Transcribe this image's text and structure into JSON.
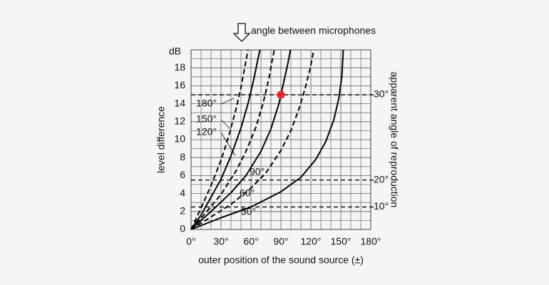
{
  "chart_data": {
    "type": "line",
    "title": "angle between microphones",
    "x_label": "outer position of the sound source (±)",
    "y_label": "level difference",
    "y_unit": "dB",
    "y2_label": "apparent angle of reproduction",
    "xlim": [
      0,
      180
    ],
    "ylim": [
      0,
      20
    ],
    "xticks": [
      {
        "value": 0,
        "label": "0°"
      },
      {
        "value": 30,
        "label": "30°"
      },
      {
        "value": 60,
        "label": "60°"
      },
      {
        "value": 90,
        "label": "90°"
      },
      {
        "value": 120,
        "label": "120°"
      },
      {
        "value": 150,
        "label": "150°"
      },
      {
        "value": 180,
        "label": "180°"
      }
    ],
    "yticks": [
      0,
      2,
      4,
      6,
      8,
      10,
      12,
      14,
      16,
      18
    ],
    "grid": true,
    "grid_step_x": 10,
    "grid_step_y": 1,
    "series": [
      {
        "name": "30°",
        "color": "#000000",
        "dashed": false,
        "x": [
          0,
          30,
          60,
          90,
          110,
          125,
          135,
          143,
          148,
          151,
          152.5
        ],
        "values": [
          0,
          1.3,
          2.5,
          4.2,
          5.8,
          7.8,
          9.8,
          12.2,
          14.6,
          17,
          20
        ]
      },
      {
        "name": "60°",
        "color": "#000000",
        "dashed": true,
        "x": [
          0,
          20,
          40,
          60,
          75,
          90,
          100,
          108,
          114,
          119,
          123
        ],
        "values": [
          0,
          1.4,
          2.8,
          4.6,
          6.3,
          8.8,
          11,
          13.4,
          15.6,
          17.8,
          20
        ]
      },
      {
        "name": "90°",
        "color": "#000000",
        "dashed": false,
        "x": [
          0,
          20,
          40,
          55,
          70,
          80,
          88,
          93,
          97,
          99.5
        ],
        "values": [
          0,
          2,
          4.1,
          6,
          8.7,
          11.2,
          14,
          16.5,
          18.5,
          20
        ]
      },
      {
        "name": "120°",
        "color": "#000000",
        "dashed": true,
        "x": [
          0,
          15,
          30,
          45,
          55,
          65,
          72,
          78,
          82,
          83.5
        ],
        "values": [
          0,
          1.9,
          3.9,
          6.5,
          8.7,
          11.4,
          14,
          16.8,
          19.3,
          20
        ]
      },
      {
        "name": "150°",
        "color": "#000000",
        "dashed": false,
        "x": [
          0,
          10,
          20,
          30,
          40,
          50,
          57,
          63,
          67,
          69
        ],
        "values": [
          0,
          1.6,
          3.6,
          5.6,
          8.2,
          11.3,
          14,
          16.8,
          19,
          20
        ]
      },
      {
        "name": "180°",
        "color": "#000000",
        "dashed": true,
        "x": [
          0,
          10,
          20,
          30,
          38,
          45,
          50,
          54,
          57
        ],
        "values": [
          0,
          2.4,
          4.9,
          7.7,
          10.5,
          13.4,
          15.8,
          18.2,
          20
        ]
      }
    ],
    "reference_lines": [
      {
        "value": 15,
        "label": "30°"
      },
      {
        "value": 5.5,
        "label": "20°"
      },
      {
        "value": 2.5,
        "label": "10°"
      }
    ],
    "highlight": {
      "x": 90,
      "y": 15,
      "color": "#e8262b"
    }
  }
}
